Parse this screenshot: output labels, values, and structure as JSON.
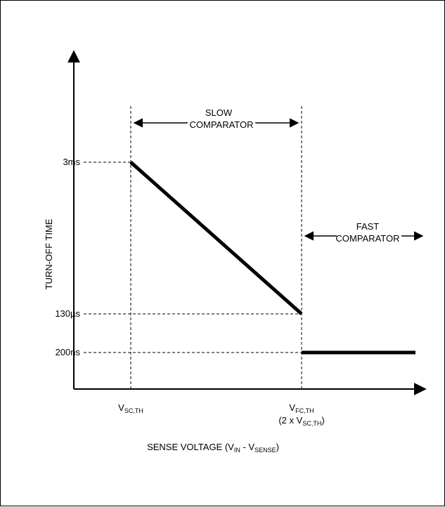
{
  "chart_data": {
    "type": "line",
    "ylabel": "TURN-OFF TIME",
    "xlabel": {
      "main": "SENSE VOLTAGE (V",
      "sub1": "IN",
      "mid": " - V",
      "sub2": "SENSE",
      "end": ")"
    },
    "y_ticks": [
      "3ms",
      "130µs",
      "200ns"
    ],
    "x_ticks": [
      {
        "main": "V",
        "sub": "SC,TH"
      },
      {
        "main": "V",
        "sub": "FC,TH"
      }
    ],
    "x_tick2_note": {
      "pre": "(2 x V",
      "sub": "SC,TH",
      "post": ")"
    },
    "annotations": {
      "slow": [
        "SLOW",
        "COMPARATOR"
      ],
      "fast": [
        "FAST",
        "COMPARATOR"
      ]
    },
    "series": [
      {
        "segments": [
          {
            "x": [
              "VSC,TH",
              "VFC,TH"
            ],
            "y": [
              "3ms",
              "130µs"
            ]
          },
          {
            "x": [
              "VFC,TH",
              ">"
            ],
            "y": [
              "200ns",
              "200ns"
            ]
          }
        ]
      }
    ]
  }
}
